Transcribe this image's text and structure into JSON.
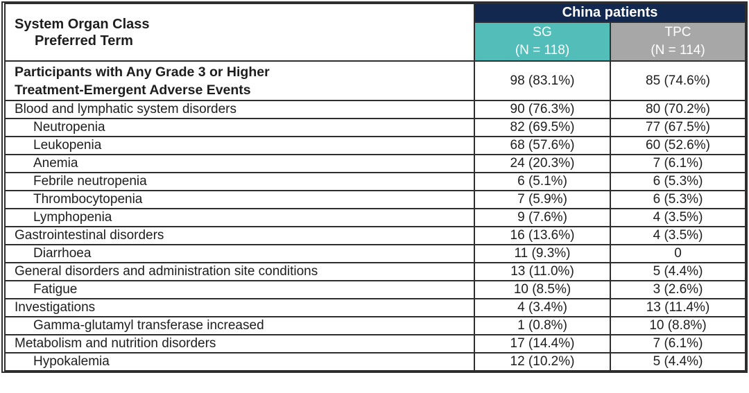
{
  "table": {
    "corner_header": {
      "line1": "System Organ Class",
      "line2": "Preferred Term"
    },
    "group_header": "China patients",
    "columns": [
      {
        "label": "SG",
        "n_label": "(N = 118)"
      },
      {
        "label": "TPC",
        "n_label": "(N = 114)"
      }
    ],
    "rows": [
      {
        "label_lines": [
          "Participants with Any Grade 3 or Higher",
          "Treatment-Emergent Adverse Events"
        ],
        "bold": true,
        "indent": false,
        "sg": "98 (83.1%)",
        "tpc": "85 (74.6%)"
      },
      {
        "label_lines": [
          "Blood and lymphatic system disorders"
        ],
        "bold": false,
        "indent": false,
        "sg": "90 (76.3%)",
        "tpc": "80 (70.2%)"
      },
      {
        "label_lines": [
          "Neutropenia"
        ],
        "bold": false,
        "indent": true,
        "sg": "82 (69.5%)",
        "tpc": "77 (67.5%)"
      },
      {
        "label_lines": [
          "Leukopenia"
        ],
        "bold": false,
        "indent": true,
        "sg": "68 (57.6%)",
        "tpc": "60 (52.6%)"
      },
      {
        "label_lines": [
          "Anemia"
        ],
        "bold": false,
        "indent": true,
        "sg": "24 (20.3%)",
        "tpc": "7 (6.1%)"
      },
      {
        "label_lines": [
          "Febrile neutropenia"
        ],
        "bold": false,
        "indent": true,
        "sg": "6 (5.1%)",
        "tpc": "6 (5.3%)"
      },
      {
        "label_lines": [
          "Thrombocytopenia"
        ],
        "bold": false,
        "indent": true,
        "sg": "7 (5.9%)",
        "tpc": "6 (5.3%)"
      },
      {
        "label_lines": [
          "Lymphopenia"
        ],
        "bold": false,
        "indent": true,
        "sg": "9 (7.6%)",
        "tpc": "4 (3.5%)"
      },
      {
        "label_lines": [
          "Gastrointestinal disorders"
        ],
        "bold": false,
        "indent": false,
        "sg": "16 (13.6%)",
        "tpc": "4 (3.5%)"
      },
      {
        "label_lines": [
          "Diarrhoea"
        ],
        "bold": false,
        "indent": true,
        "sg": "11 (9.3%)",
        "tpc": "0"
      },
      {
        "label_lines": [
          "General disorders and administration site conditions"
        ],
        "bold": false,
        "indent": false,
        "sg": "13 (11.0%)",
        "tpc": "5 (4.4%)"
      },
      {
        "label_lines": [
          "Fatigue"
        ],
        "bold": false,
        "indent": true,
        "sg": "10 (8.5%)",
        "tpc": "3 (2.6%)"
      },
      {
        "label_lines": [
          "Investigations"
        ],
        "bold": false,
        "indent": false,
        "sg": "4 (3.4%)",
        "tpc": "13 (11.4%)"
      },
      {
        "label_lines": [
          "Gamma-glutamyl transferase increased"
        ],
        "bold": false,
        "indent": true,
        "sg": "1 (0.8%)",
        "tpc": "10 (8.8%)"
      },
      {
        "label_lines": [
          "Metabolism and nutrition disorders"
        ],
        "bold": false,
        "indent": false,
        "sg": "17 (14.4%)",
        "tpc": "7 (6.1%)"
      },
      {
        "label_lines": [
          "Hypokalemia"
        ],
        "bold": false,
        "indent": true,
        "sg": "12 (10.2%)",
        "tpc": "5 (4.4%)"
      }
    ]
  },
  "colors": {
    "group_header_bg": "#12284e",
    "sg_header_bg": "#52bdb9",
    "tpc_header_bg": "#a7a7a7",
    "header_text": "#ffffff",
    "border": "#2e2e2e",
    "body_text": "#1d1d1d"
  }
}
